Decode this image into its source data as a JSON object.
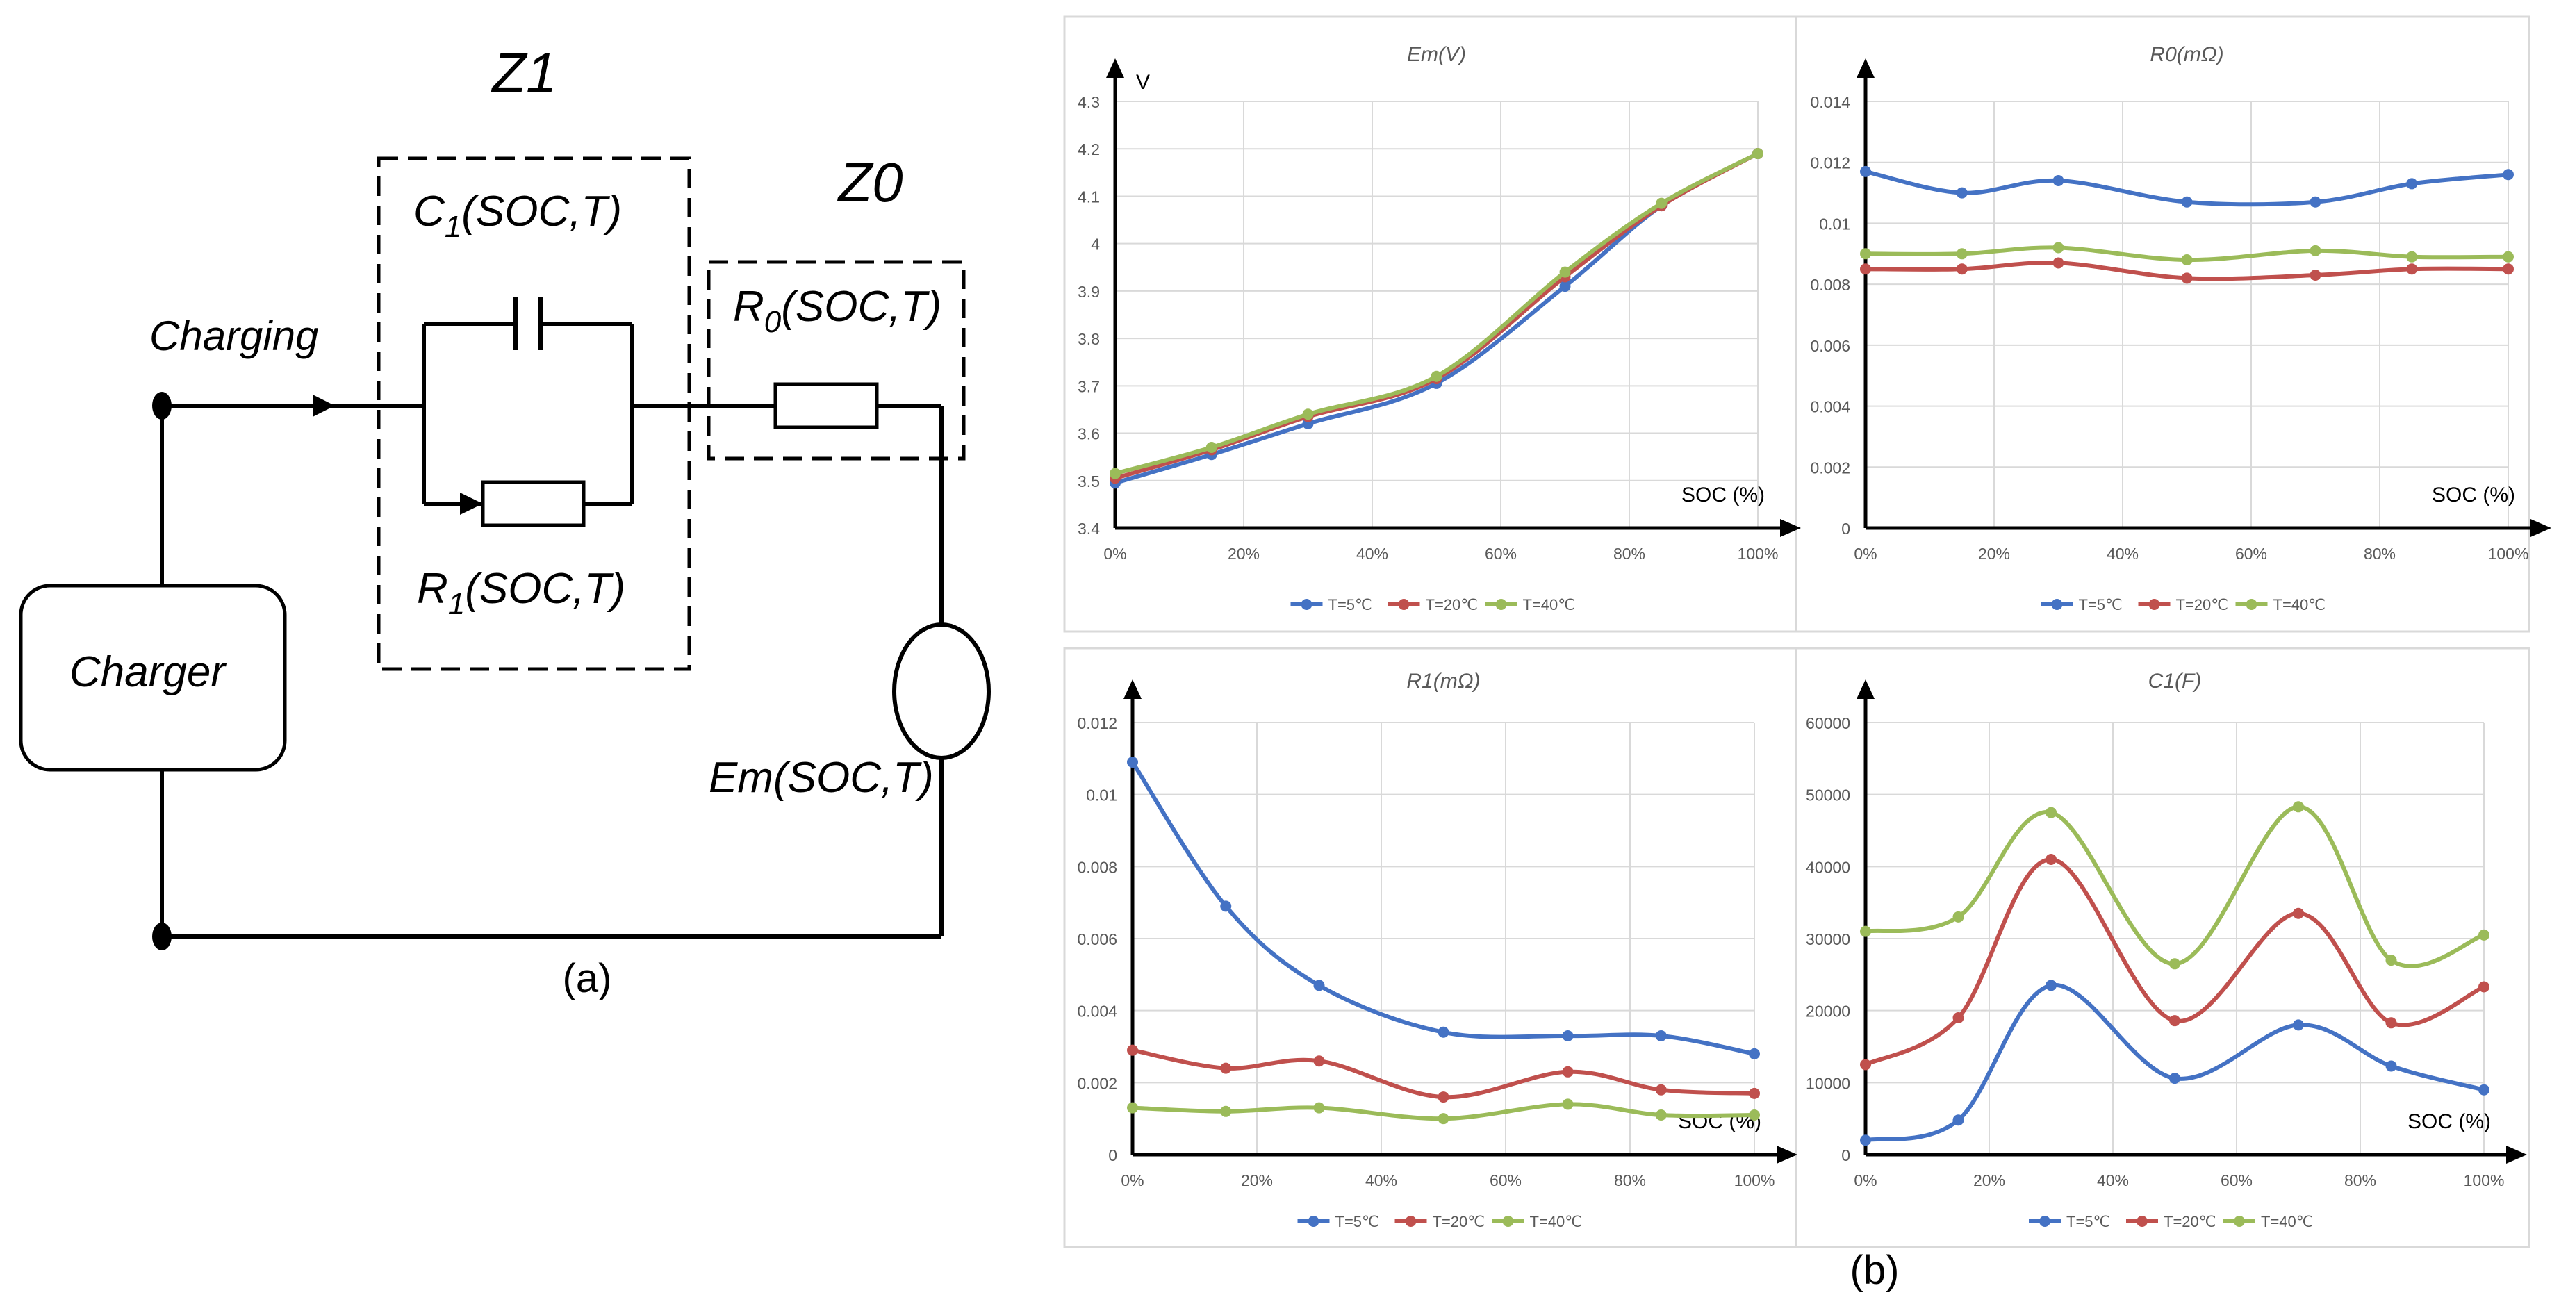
{
  "circuit": {
    "z1_label": "Z1",
    "z0_label": "Z0",
    "c1_label_main": "C",
    "c1_label_sub": "1",
    "c1_label_args": "(SOC,T)",
    "r1_label_main": "R",
    "r1_label_sub": "1",
    "r1_label_args": "(SOC,T)",
    "r0_label_main": "R",
    "r0_label_sub": "0",
    "r0_label_args": "(SOC,T)",
    "charging_label": "Charging",
    "charger_label": "Charger",
    "em_label": "Em(SOC,T)",
    "panel_label": "(a)"
  },
  "panel_b_label": "(b)",
  "colors": {
    "T5": "#4472c4",
    "T20": "#c0504d",
    "T40": "#9bbb59"
  },
  "chart_data": [
    {
      "type": "line",
      "title": "Em(V)",
      "ylabel": "V",
      "xlabel": "SOC (%)",
      "x": [
        0,
        15,
        30,
        50,
        70,
        85,
        100
      ],
      "xlim": [
        0,
        100
      ],
      "xticks": [
        "0%",
        "20%",
        "40%",
        "60%",
        "80%",
        "100%"
      ],
      "ylim": [
        3.4,
        4.3
      ],
      "yticks": [
        "3.4",
        "3.5",
        "3.6",
        "3.7",
        "3.8",
        "3.9",
        "4",
        "4.1",
        "4.2",
        "4.3"
      ],
      "series": [
        {
          "name": "T=5℃",
          "values": [
            3.495,
            3.555,
            3.62,
            3.705,
            3.91,
            4.08,
            4.19
          ]
        },
        {
          "name": "T=20℃",
          "values": [
            3.505,
            3.565,
            3.635,
            3.715,
            3.93,
            4.08,
            4.19
          ]
        },
        {
          "name": "T=40℃",
          "values": [
            3.515,
            3.57,
            3.64,
            3.72,
            3.94,
            4.085,
            4.19
          ]
        }
      ]
    },
    {
      "type": "line",
      "title": "R0(mΩ)",
      "ylabel": "",
      "xlabel": "SOC (%)",
      "x": [
        0,
        15,
        30,
        50,
        70,
        85,
        100
      ],
      "xlim": [
        0,
        100
      ],
      "xticks": [
        "0%",
        "20%",
        "40%",
        "60%",
        "80%",
        "100%"
      ],
      "ylim": [
        0,
        0.014
      ],
      "yticks": [
        "0",
        "0.002",
        "0.004",
        "0.006",
        "0.008",
        "0.01",
        "0.012",
        "0.014"
      ],
      "series": [
        {
          "name": "T=5℃",
          "values": [
            0.0117,
            0.011,
            0.0114,
            0.0107,
            0.0107,
            0.0113,
            0.0116
          ]
        },
        {
          "name": "T=20℃",
          "values": [
            0.0085,
            0.0085,
            0.0087,
            0.0082,
            0.0083,
            0.0085,
            0.0085
          ]
        },
        {
          "name": "T=40℃",
          "values": [
            0.009,
            0.009,
            0.0092,
            0.0088,
            0.0091,
            0.0089,
            0.0089
          ]
        }
      ]
    },
    {
      "type": "line",
      "title": "R1(mΩ)",
      "ylabel": "",
      "xlabel": "SOC (%)",
      "x": [
        0,
        15,
        30,
        50,
        70,
        85,
        100
      ],
      "xlim": [
        0,
        100
      ],
      "xticks": [
        "0%",
        "20%",
        "40%",
        "60%",
        "80%",
        "100%"
      ],
      "ylim": [
        0,
        0.012
      ],
      "yticks": [
        "0",
        "0.002",
        "0.004",
        "0.006",
        "0.008",
        "0.01",
        "0.012"
      ],
      "series": [
        {
          "name": "T=5℃",
          "values": [
            0.0109,
            0.0069,
            0.0047,
            0.0034,
            0.0033,
            0.0033,
            0.0028
          ]
        },
        {
          "name": "T=20℃",
          "values": [
            0.0029,
            0.0024,
            0.0026,
            0.0016,
            0.0023,
            0.0018,
            0.0017
          ]
        },
        {
          "name": "T=40℃",
          "values": [
            0.0013,
            0.0012,
            0.0013,
            0.001,
            0.0014,
            0.0011,
            0.0011
          ]
        }
      ]
    },
    {
      "type": "line",
      "title": "C1(F)",
      "ylabel": "",
      "xlabel": "SOC (%)",
      "x": [
        0,
        15,
        30,
        50,
        70,
        85,
        100
      ],
      "xlim": [
        0,
        100
      ],
      "xticks": [
        "0%",
        "20%",
        "40%",
        "60%",
        "80%",
        "100%"
      ],
      "ylim": [
        0,
        60000
      ],
      "yticks": [
        "0",
        "10000",
        "20000",
        "30000",
        "40000",
        "50000",
        "60000"
      ],
      "series": [
        {
          "name": "T=5℃",
          "values": [
            2000,
            4800,
            23500,
            10600,
            18000,
            12300,
            9000
          ]
        },
        {
          "name": "T=20℃",
          "values": [
            12500,
            19000,
            41000,
            18600,
            33500,
            18300,
            23300
          ]
        },
        {
          "name": "T=40℃",
          "values": [
            31000,
            33000,
            47500,
            26500,
            48300,
            27000,
            30500
          ]
        }
      ]
    }
  ]
}
